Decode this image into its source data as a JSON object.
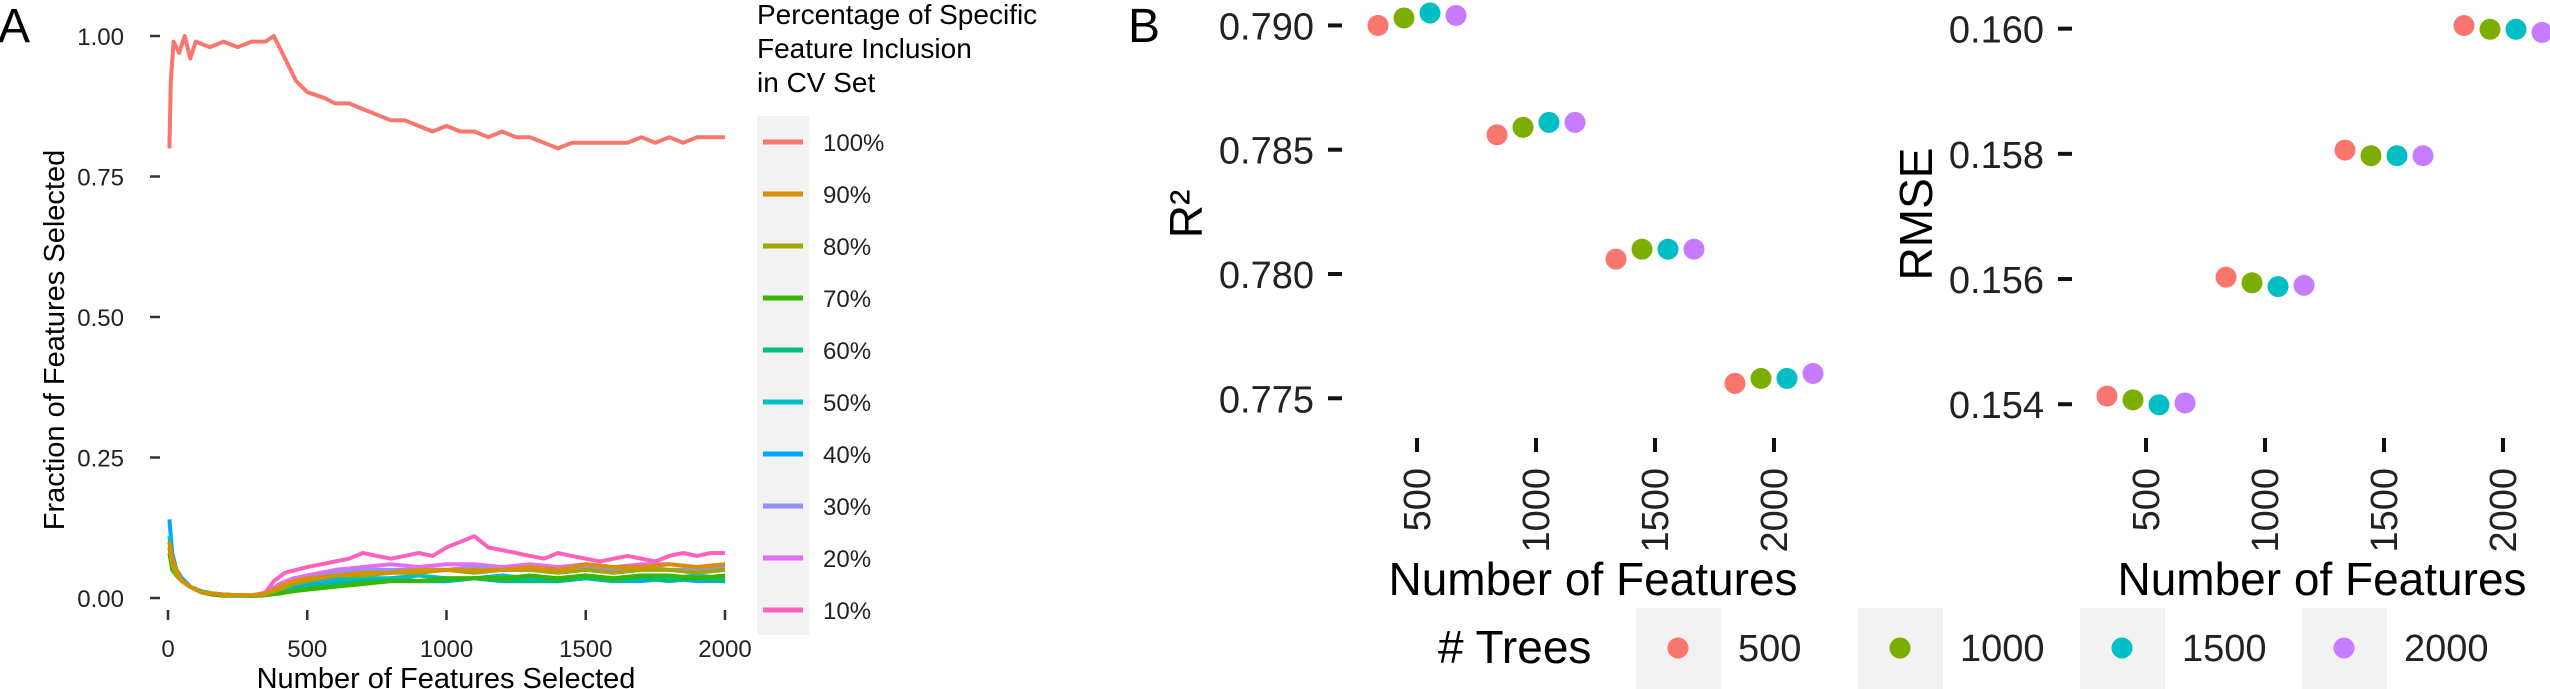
{
  "panel_labels": [
    "A",
    "B"
  ],
  "chart_data": [
    {
      "type": "line",
      "panel": "A",
      "xlabel": "Number of Features Selected",
      "ylabel": "Fraction of Features Selected",
      "xlim": [
        0,
        2000
      ],
      "ylim": [
        0,
        1
      ],
      "x_ticks": [
        0,
        500,
        1000,
        1500,
        2000
      ],
      "x_tick_labels": [
        "0",
        "500",
        "1000",
        "1500",
        "2000"
      ],
      "y_ticks": [
        0,
        0.25,
        0.5,
        0.75,
        1.0
      ],
      "y_tick_labels": [
        "0.00",
        "0.25",
        "0.50",
        "0.75",
        "1.00"
      ],
      "grid": false,
      "legend": {
        "title_lines": [
          "Percentage of Specific",
          "Feature Inclusion",
          "in CV Set"
        ],
        "placement": "right"
      },
      "series": [
        {
          "name": "100%",
          "color": "#F8766D",
          "x": [
            5,
            10,
            20,
            40,
            60,
            80,
            100,
            150,
            200,
            250,
            300,
            350,
            380,
            420,
            460,
            500,
            560,
            600,
            650,
            700,
            750,
            800,
            850,
            900,
            950,
            1000,
            1050,
            1100,
            1150,
            1200,
            1250,
            1300,
            1350,
            1400,
            1450,
            1500,
            1550,
            1600,
            1650,
            1700,
            1750,
            1800,
            1850,
            1900,
            1950,
            2000
          ],
          "y": [
            0.8,
            0.92,
            0.99,
            0.97,
            1.0,
            0.96,
            0.99,
            0.98,
            0.99,
            0.98,
            0.99,
            0.99,
            1.0,
            0.96,
            0.92,
            0.9,
            0.89,
            0.88,
            0.88,
            0.87,
            0.86,
            0.85,
            0.85,
            0.84,
            0.83,
            0.84,
            0.83,
            0.83,
            0.82,
            0.83,
            0.82,
            0.82,
            0.81,
            0.8,
            0.81,
            0.81,
            0.81,
            0.81,
            0.81,
            0.82,
            0.81,
            0.82,
            0.81,
            0.82,
            0.82,
            0.82
          ]
        },
        {
          "name": "90%",
          "color": "#D89000",
          "x": [
            5,
            15,
            30,
            50,
            80,
            120,
            160,
            200,
            250,
            300,
            350,
            400,
            450,
            500,
            600,
            700,
            800,
            900,
            1000,
            1100,
            1200,
            1300,
            1400,
            1500,
            1600,
            1700,
            1800,
            1900,
            2000
          ],
          "y": [
            0.1,
            0.07,
            0.05,
            0.03,
            0.02,
            0.01,
            0.008,
            0.006,
            0.005,
            0.005,
            0.008,
            0.02,
            0.03,
            0.035,
            0.04,
            0.045,
            0.045,
            0.05,
            0.05,
            0.05,
            0.05,
            0.055,
            0.05,
            0.06,
            0.055,
            0.055,
            0.06,
            0.055,
            0.06
          ]
        },
        {
          "name": "80%",
          "color": "#A3A500",
          "x": [
            5,
            15,
            30,
            50,
            80,
            120,
            160,
            200,
            250,
            300,
            350,
            400,
            450,
            500,
            600,
            700,
            800,
            900,
            1000,
            1100,
            1200,
            1300,
            1400,
            1500,
            1600,
            1700,
            1800,
            1900,
            2000
          ],
          "y": [
            0.09,
            0.06,
            0.04,
            0.03,
            0.02,
            0.01,
            0.008,
            0.006,
            0.005,
            0.005,
            0.007,
            0.015,
            0.025,
            0.03,
            0.04,
            0.04,
            0.045,
            0.045,
            0.05,
            0.045,
            0.05,
            0.05,
            0.045,
            0.05,
            0.045,
            0.05,
            0.05,
            0.045,
            0.05
          ]
        },
        {
          "name": "70%",
          "color": "#39B600",
          "x": [
            5,
            15,
            30,
            50,
            80,
            120,
            160,
            200,
            250,
            300,
            350,
            400,
            450,
            500,
            600,
            700,
            800,
            900,
            1000,
            1100,
            1200,
            1300,
            1400,
            1500,
            1600,
            1700,
            1800,
            1900,
            2000
          ],
          "y": [
            0.08,
            0.05,
            0.04,
            0.03,
            0.02,
            0.01,
            0.006,
            0.004,
            0.004,
            0.004,
            0.005,
            0.008,
            0.012,
            0.015,
            0.02,
            0.025,
            0.03,
            0.03,
            0.035,
            0.035,
            0.035,
            0.04,
            0.035,
            0.04,
            0.035,
            0.04,
            0.04,
            0.035,
            0.04
          ]
        },
        {
          "name": "60%",
          "color": "#00BF7D",
          "x": [
            5,
            15,
            30,
            50,
            80,
            120,
            160,
            200,
            250,
            300,
            350,
            400,
            450,
            500,
            600,
            700,
            800,
            900,
            1000,
            1100,
            1200,
            1300,
            1400,
            1500,
            1600,
            1700,
            1800,
            1900,
            2000
          ],
          "y": [
            0.09,
            0.06,
            0.04,
            0.03,
            0.02,
            0.01,
            0.007,
            0.005,
            0.004,
            0.004,
            0.005,
            0.01,
            0.015,
            0.02,
            0.025,
            0.03,
            0.03,
            0.03,
            0.03,
            0.035,
            0.03,
            0.03,
            0.03,
            0.035,
            0.03,
            0.035,
            0.03,
            0.035,
            0.03
          ]
        },
        {
          "name": "50%",
          "color": "#00BFC4",
          "x": [
            5,
            15,
            30,
            50,
            80,
            120,
            160,
            200,
            250,
            300,
            350,
            400,
            450,
            500,
            600,
            700,
            800,
            900,
            1000,
            1100,
            1200,
            1300,
            1400,
            1500,
            1600,
            1700,
            1800,
            1900,
            2000
          ],
          "y": [
            0.11,
            0.07,
            0.05,
            0.03,
            0.02,
            0.012,
            0.008,
            0.006,
            0.005,
            0.004,
            0.006,
            0.015,
            0.025,
            0.03,
            0.035,
            0.035,
            0.035,
            0.04,
            0.035,
            0.035,
            0.04,
            0.035,
            0.035,
            0.04,
            0.035,
            0.04,
            0.035,
            0.04,
            0.035
          ]
        },
        {
          "name": "40%",
          "color": "#00A9FF",
          "x": [
            5,
            10,
            15,
            30,
            50,
            80,
            120,
            160,
            200,
            250,
            300,
            350,
            400,
            450,
            500,
            600,
            700,
            800,
            900,
            1000,
            1100,
            1200,
            1300,
            1400,
            1500,
            1600,
            1700,
            1800,
            1900,
            2000
          ],
          "y": [
            0.14,
            0.11,
            0.08,
            0.05,
            0.035,
            0.02,
            0.012,
            0.008,
            0.006,
            0.005,
            0.004,
            0.006,
            0.015,
            0.02,
            0.025,
            0.03,
            0.03,
            0.035,
            0.03,
            0.03,
            0.035,
            0.03,
            0.03,
            0.03,
            0.035,
            0.03,
            0.03,
            0.035,
            0.03,
            0.03
          ]
        },
        {
          "name": "30%",
          "color": "#9590FF",
          "x": [
            5,
            15,
            30,
            50,
            80,
            120,
            160,
            200,
            250,
            300,
            350,
            400,
            450,
            500,
            600,
            700,
            800,
            900,
            1000,
            1100,
            1200,
            1300,
            1400,
            1500,
            1600,
            1700,
            1800,
            1900,
            2000
          ],
          "y": [
            0.1,
            0.07,
            0.05,
            0.035,
            0.02,
            0.012,
            0.008,
            0.006,
            0.005,
            0.004,
            0.006,
            0.02,
            0.03,
            0.035,
            0.045,
            0.05,
            0.05,
            0.05,
            0.05,
            0.055,
            0.05,
            0.05,
            0.05,
            0.055,
            0.05,
            0.055,
            0.05,
            0.05,
            0.055
          ]
        },
        {
          "name": "20%",
          "color": "#E76BF3",
          "x": [
            5,
            15,
            30,
            50,
            80,
            120,
            160,
            200,
            250,
            300,
            350,
            400,
            450,
            500,
            600,
            700,
            800,
            900,
            1000,
            1100,
            1200,
            1300,
            1400,
            1500,
            1600,
            1700,
            1800,
            1900,
            2000
          ],
          "y": [
            0.1,
            0.07,
            0.05,
            0.035,
            0.02,
            0.012,
            0.008,
            0.006,
            0.005,
            0.004,
            0.008,
            0.025,
            0.035,
            0.04,
            0.05,
            0.055,
            0.06,
            0.055,
            0.06,
            0.06,
            0.055,
            0.06,
            0.055,
            0.06,
            0.055,
            0.06,
            0.06,
            0.055,
            0.06
          ]
        },
        {
          "name": "10%",
          "color": "#FF62BC",
          "x": [
            5,
            15,
            30,
            50,
            80,
            120,
            160,
            200,
            250,
            300,
            350,
            380,
            420,
            460,
            500,
            550,
            600,
            650,
            700,
            750,
            800,
            850,
            900,
            950,
            1000,
            1050,
            1100,
            1150,
            1200,
            1250,
            1300,
            1350,
            1400,
            1450,
            1500,
            1550,
            1600,
            1650,
            1700,
            1750,
            1800,
            1850,
            1900,
            1950,
            2000
          ],
          "y": [
            0.1,
            0.07,
            0.05,
            0.035,
            0.02,
            0.012,
            0.008,
            0.006,
            0.005,
            0.004,
            0.01,
            0.03,
            0.045,
            0.05,
            0.055,
            0.06,
            0.065,
            0.07,
            0.08,
            0.075,
            0.07,
            0.075,
            0.08,
            0.075,
            0.09,
            0.1,
            0.11,
            0.09,
            0.085,
            0.08,
            0.075,
            0.07,
            0.08,
            0.075,
            0.07,
            0.065,
            0.07,
            0.075,
            0.07,
            0.065,
            0.075,
            0.08,
            0.075,
            0.08,
            0.08
          ]
        }
      ]
    },
    {
      "type": "scatter",
      "panel": "B",
      "xlabel": "Number of Features",
      "ylabel": "R²",
      "categories": [
        "500",
        "1000",
        "1500",
        "2000"
      ],
      "ylim": [
        0.773,
        0.7905
      ],
      "y_ticks": [
        0.775,
        0.78,
        0.785,
        0.79
      ],
      "y_tick_labels": [
        "0.775",
        "0.780",
        "0.785",
        "0.790"
      ],
      "grid": false,
      "series": [
        {
          "name": "500",
          "values": [
            0.79,
            0.7856,
            0.7806,
            0.7756
          ]
        },
        {
          "name": "1000",
          "values": [
            0.7903,
            0.7859,
            0.781,
            0.7758
          ]
        },
        {
          "name": "1500",
          "values": [
            0.7905,
            0.7861,
            0.781,
            0.7758
          ]
        },
        {
          "name": "2000",
          "values": [
            0.7904,
            0.7861,
            0.781,
            0.776
          ]
        }
      ]
    },
    {
      "type": "scatter",
      "panel": "B",
      "xlabel": "Number of Features",
      "ylabel": "RMSE",
      "categories": [
        "500",
        "1000",
        "1500",
        "2000"
      ],
      "ylim": [
        0.1537,
        0.16025
      ],
      "y_ticks": [
        0.154,
        0.156,
        0.158,
        0.16
      ],
      "y_tick_labels": [
        "0.154",
        "0.156",
        "0.158",
        "0.160"
      ],
      "grid": false,
      "series": [
        {
          "name": "500",
          "values": [
            0.15413,
            0.15603,
            0.15806,
            0.16005
          ]
        },
        {
          "name": "1000",
          "values": [
            0.15407,
            0.15594,
            0.15797,
            0.15999
          ]
        },
        {
          "name": "1500",
          "values": [
            0.15399,
            0.15588,
            0.15797,
            0.15999
          ]
        },
        {
          "name": "2000",
          "values": [
            0.15402,
            0.1559,
            0.15797,
            0.15994
          ]
        }
      ]
    }
  ],
  "trees_legend": {
    "title": "# Trees",
    "placement": "bottom",
    "items": [
      {
        "label": "500",
        "color": "#F8766D"
      },
      {
        "label": "1000",
        "color": "#7CAE00"
      },
      {
        "label": "1500",
        "color": "#00BFC4"
      },
      {
        "label": "2000",
        "color": "#C77CFF"
      }
    ]
  }
}
